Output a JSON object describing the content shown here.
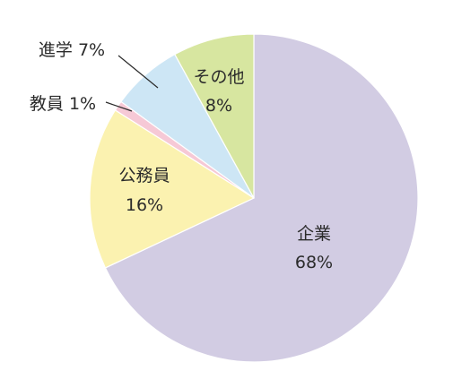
{
  "chart_data": {
    "type": "pie",
    "title": "",
    "start_angle_deg": 0,
    "direction": "clockwise",
    "slices": [
      {
        "label": "企業",
        "value": 68,
        "pct_label": "68%",
        "color": "#d2cce3"
      },
      {
        "label": "公務員",
        "value": 16,
        "pct_label": "16%",
        "color": "#fbf2b0"
      },
      {
        "label": "教員",
        "value": 1,
        "pct_label": "1%",
        "color": "#f6c9d6"
      },
      {
        "label": "進学",
        "value": 7,
        "pct_label": "7%",
        "color": "#cde6f5"
      },
      {
        "label": "その他",
        "value": 8,
        "pct_label": "8%",
        "color": "#d7e6a0"
      }
    ]
  }
}
